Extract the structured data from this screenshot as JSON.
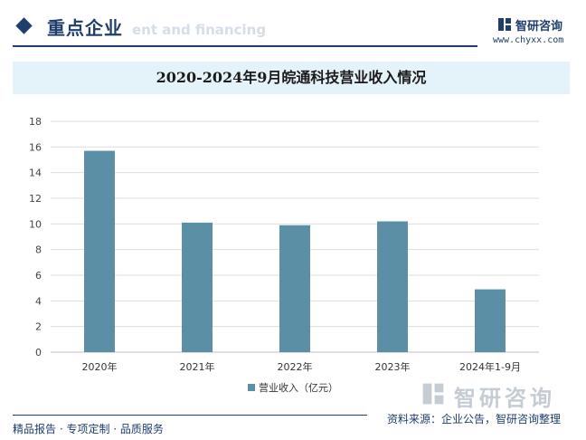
{
  "header": {
    "title": "重点企业",
    "subtitle": "ent and financing"
  },
  "brand": {
    "name": "智研咨询",
    "url": "www.chyxx.com"
  },
  "chart_data": {
    "type": "bar",
    "title": "2020-2024年9月皖通科技营业收入情况",
    "categories": [
      "2020年",
      "2021年",
      "2022年",
      "2023年",
      "2024年1-9月"
    ],
    "series": [
      {
        "name": "营业收入（亿元）",
        "values": [
          15.7,
          10.1,
          9.9,
          10.2,
          4.9
        ],
        "color": "#5b8fa6"
      }
    ],
    "ylim": [
      0,
      18
    ],
    "yticks": [
      0,
      2,
      4,
      6,
      8,
      10,
      12,
      14,
      16,
      18
    ],
    "grid": true,
    "legend": "bottom-center"
  },
  "watermark": {
    "text": "智研咨询"
  },
  "footer": {
    "left": "精品报告 · 专项定制 · 品质服务",
    "source": "资料来源：企业公告，智研咨询整理"
  }
}
